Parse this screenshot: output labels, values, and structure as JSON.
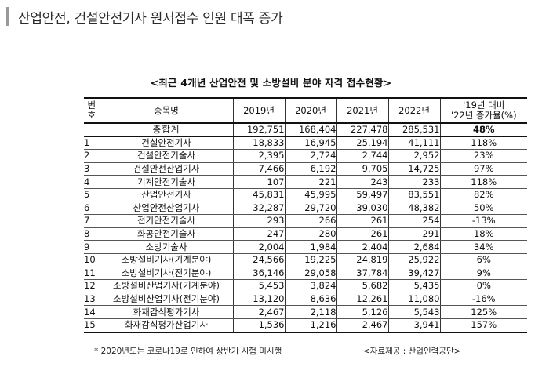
{
  "page": {
    "title": "산업안전, 건설안전기사 원서접수 인원 대폭 증가"
  },
  "table": {
    "caption": "<최근 4개년 산업안전 및 소방설비 분야 자격 접수현황>",
    "headers": {
      "no_line1": "번",
      "no_line2": "호",
      "name": "종목명",
      "y2019": "2019년",
      "y2020": "2020년",
      "y2021": "2021년",
      "y2022": "2022년",
      "rate_line1": "'19년 대비",
      "rate_line2": "'22년 증가율(%)"
    },
    "total": {
      "name": "총합계",
      "y2019": "192,751",
      "y2020": "168,404",
      "y2021": "227,478",
      "y2022": "285,531",
      "rate": "48%"
    },
    "rows": [
      {
        "no": "1",
        "name": "건설안전기사",
        "y2019": "18,833",
        "y2020": "16,945",
        "y2021": "25,194",
        "y2022": "41,111",
        "rate": "118%"
      },
      {
        "no": "2",
        "name": "건설안전기술사",
        "y2019": "2,395",
        "y2020": "2,724",
        "y2021": "2,744",
        "y2022": "2,952",
        "rate": "23%"
      },
      {
        "no": "3",
        "name": "건설안전산업기사",
        "y2019": "7,466",
        "y2020": "6,192",
        "y2021": "9,705",
        "y2022": "14,725",
        "rate": "97%"
      },
      {
        "no": "4",
        "name": "기계안전기술사",
        "y2019": "107",
        "y2020": "221",
        "y2021": "243",
        "y2022": "233",
        "rate": "118%"
      },
      {
        "no": "5",
        "name": "산업안전기사",
        "y2019": "45,831",
        "y2020": "45,995",
        "y2021": "59,497",
        "y2022": "83,551",
        "rate": "82%"
      },
      {
        "no": "6",
        "name": "산업안전산업기사",
        "y2019": "32,287",
        "y2020": "29,720",
        "y2021": "39,030",
        "y2022": "48,382",
        "rate": "50%"
      },
      {
        "no": "7",
        "name": "전기안전기술사",
        "y2019": "293",
        "y2020": "266",
        "y2021": "261",
        "y2022": "254",
        "rate": "-13%"
      },
      {
        "no": "8",
        "name": "화공안전기술사",
        "y2019": "247",
        "y2020": "280",
        "y2021": "261",
        "y2022": "291",
        "rate": "18%"
      },
      {
        "no": "9",
        "name": "소방기술사",
        "y2019": "2,004",
        "y2020": "1,984",
        "y2021": "2,404",
        "y2022": "2,684",
        "rate": "34%"
      },
      {
        "no": "10",
        "name": "소방설비기사(기계분야)",
        "y2019": "24,566",
        "y2020": "19,225",
        "y2021": "24,819",
        "y2022": "25,922",
        "rate": "6%"
      },
      {
        "no": "11",
        "name": "소방설비기사(전기분야)",
        "y2019": "36,146",
        "y2020": "29,058",
        "y2021": "37,784",
        "y2022": "39,427",
        "rate": "9%"
      },
      {
        "no": "12",
        "name": "소방설비산업기사(기계분야)",
        "y2019": "5,453",
        "y2020": "3,824",
        "y2021": "5,682",
        "y2022": "5,435",
        "rate": "0%"
      },
      {
        "no": "13",
        "name": "소방설비산업기사(전기분야)",
        "y2019": "13,120",
        "y2020": "8,636",
        "y2021": "12,261",
        "y2022": "11,080",
        "rate": "-16%"
      },
      {
        "no": "14",
        "name": "화재감식평가기사",
        "y2019": "2,467",
        "y2020": "2,118",
        "y2021": "5,126",
        "y2022": "5,543",
        "rate": "125%"
      },
      {
        "no": "15",
        "name": "화재감식평가산업기사",
        "y2019": "1,536",
        "y2020": "1,216",
        "y2021": "2,467",
        "y2022": "3,941",
        "rate": "157%"
      }
    ]
  },
  "footnote": "* 2020년도는 코로나19로 인하여 상반기 시험 미시행",
  "source": "<자료제공 : 산업인력공단>"
}
